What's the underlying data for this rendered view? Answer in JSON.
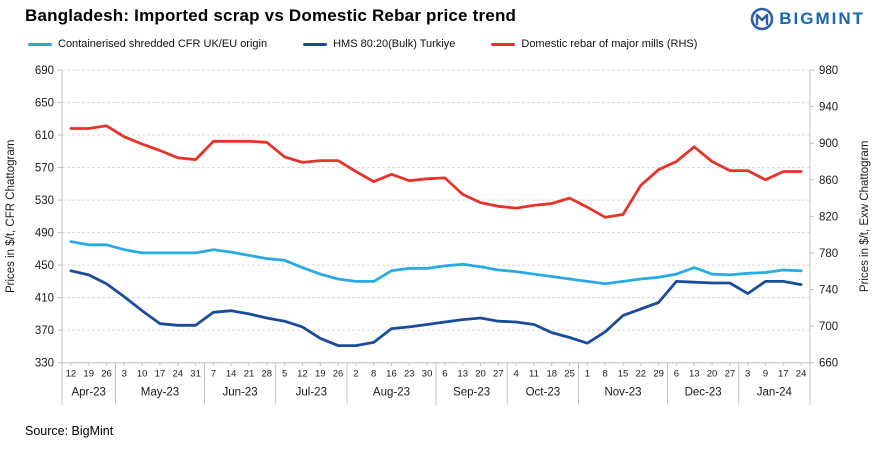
{
  "header": {
    "title": "Bangladesh: Imported scrap vs Domestic Rebar price trend",
    "logo_text": "BIGMINT"
  },
  "legend": [
    {
      "label": "Containerised shredded CFR UK/EU origin",
      "color": "#29ABE2"
    },
    {
      "label": "HMS 80:20(Bulk) Turkiye",
      "color": "#1A4C9C"
    },
    {
      "label": "Domestic rebar of major mills (RHS)",
      "color": "#E7342B"
    }
  ],
  "source": "Source: BigMint",
  "colors": {
    "gridline": "#D9D9D9",
    "axis_line": "#C0C0C0",
    "tick_text": "#1a1a1a",
    "logo_blue": "#1767B0",
    "logo_icon": "#2A5DA8"
  },
  "chart_data": {
    "type": "line",
    "title": "Bangladesh: Imported scrap vs Domestic Rebar price trend",
    "grid": true,
    "legend_position": "top",
    "left_axis": {
      "title": "Prices in $/t, CFR Chattogram",
      "min": 330,
      "max": 690,
      "step": 40,
      "ticks": [
        690,
        650,
        610,
        570,
        530,
        490,
        450,
        410,
        370,
        330
      ]
    },
    "right_axis": {
      "title": "Prices in $/t, Exw Chattogram",
      "min": 660,
      "max": 980,
      "step": 40,
      "ticks": [
        980,
        940,
        900,
        860,
        820,
        780,
        740,
        700,
        660
      ]
    },
    "months": [
      {
        "label": "Apr-23",
        "days": [
          "12",
          "19",
          "26"
        ]
      },
      {
        "label": "May-23",
        "days": [
          "3",
          "10",
          "17",
          "24",
          "31"
        ]
      },
      {
        "label": "Jun-23",
        "days": [
          "7",
          "14",
          "21",
          "28"
        ]
      },
      {
        "label": "Jul-23",
        "days": [
          "5",
          "12",
          "19",
          "26"
        ]
      },
      {
        "label": "Aug-23",
        "days": [
          "2",
          "8",
          "16",
          "23",
          "30"
        ]
      },
      {
        "label": "Sep-23",
        "days": [
          "6",
          "13",
          "20",
          "27"
        ]
      },
      {
        "label": "Oct-23",
        "days": [
          "4",
          "11",
          "18",
          "25"
        ]
      },
      {
        "label": "Nov-23",
        "days": [
          "1",
          "8",
          "15",
          "22",
          "29"
        ]
      },
      {
        "label": "Dec-23",
        "days": [
          "6",
          "13",
          "20",
          "27"
        ]
      },
      {
        "label": "Jan-24",
        "days": [
          "3",
          "9",
          "17",
          "24"
        ]
      }
    ],
    "series": [
      {
        "name": "Containerised shredded CFR UK/EU origin",
        "axis": "left",
        "color": "#29ABE2",
        "values": [
          479,
          475,
          475,
          469,
          465,
          465,
          465,
          465,
          469,
          466,
          462,
          458,
          456,
          447,
          439,
          433,
          430,
          430,
          443,
          446,
          446,
          449,
          451,
          448,
          444,
          442,
          439,
          436,
          433,
          430,
          427,
          430,
          433,
          435,
          439,
          447,
          439,
          438,
          440,
          441,
          444,
          443
        ]
      },
      {
        "name": "HMS 80:20(Bulk) Turkiye",
        "axis": "left",
        "color": "#1A4C9C",
        "values": [
          443,
          438,
          427,
          411,
          394,
          378,
          376,
          376,
          392,
          394,
          390,
          385,
          381,
          374,
          360,
          351,
          351,
          355,
          372,
          374,
          377,
          380,
          383,
          385,
          381,
          380,
          377,
          367,
          361,
          354,
          368,
          388,
          396,
          404,
          430,
          429,
          428,
          428,
          415,
          430,
          430,
          426
        ]
      },
      {
        "name": "Domestic rebar of major mills (RHS)",
        "axis": "right",
        "color": "#E7342B",
        "values": [
          916,
          916,
          919,
          907,
          899,
          892,
          884,
          882,
          902,
          902,
          902,
          901,
          885,
          879,
          881,
          881,
          869,
          858,
          866,
          859,
          861,
          862,
          844,
          835,
          831,
          829,
          832,
          834,
          840,
          830,
          819,
          822,
          854,
          871,
          880,
          896,
          880,
          870,
          870,
          860,
          869,
          869
        ]
      }
    ]
  }
}
